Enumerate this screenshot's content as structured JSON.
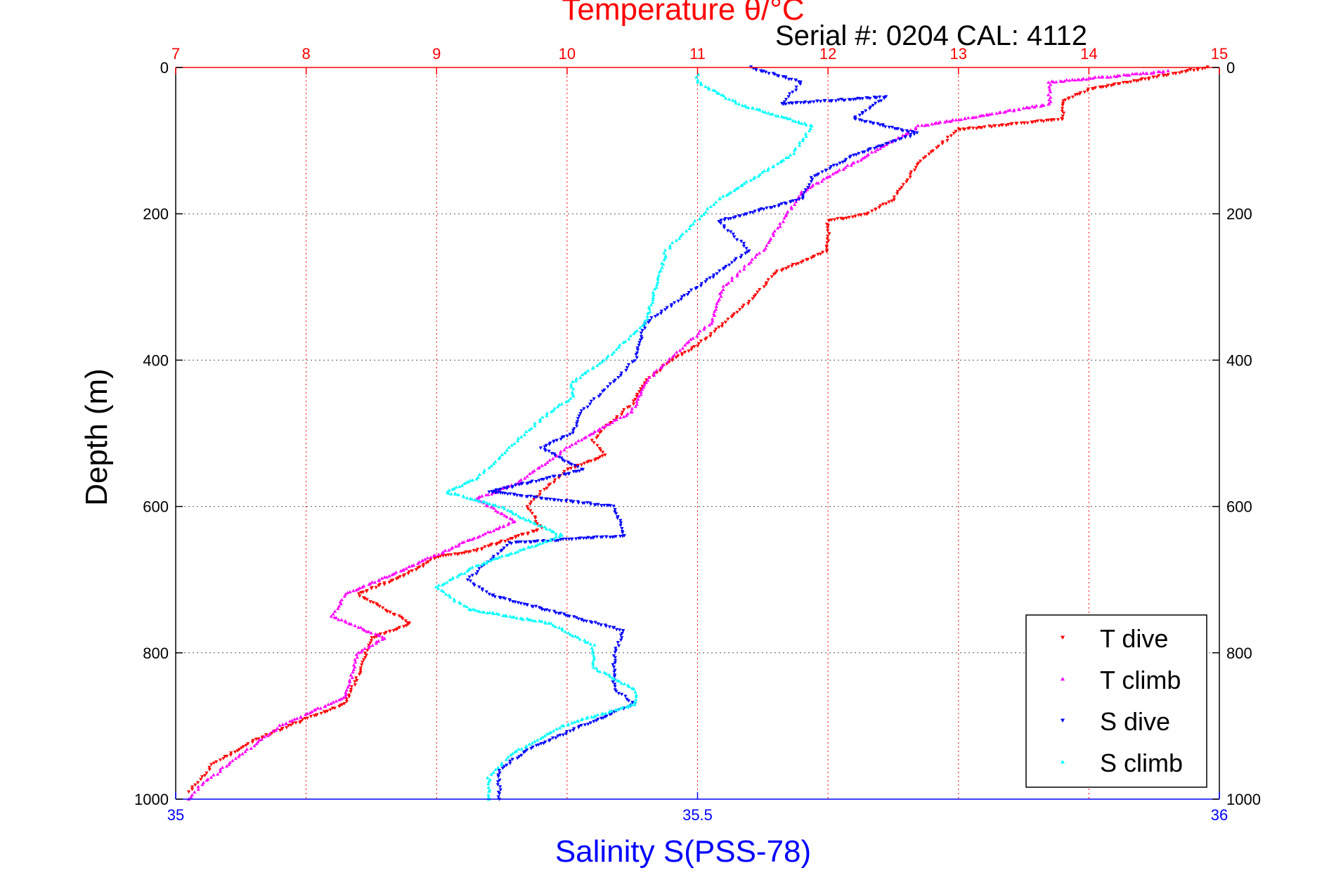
{
  "chart_data": {
    "type": "scatter",
    "title": "Temperature θ/°C",
    "subtitle": "Serial #: 0204  CAL: 4112",
    "ylabel": "Depth (m)",
    "x_top_label": "Temperature θ/°C",
    "x_bottom_label": "Salinity S(PSS-78)",
    "ylim": [
      0,
      1000
    ],
    "y_reversed": true,
    "y_ticks": [
      0,
      200,
      400,
      600,
      800,
      1000
    ],
    "temp_lim": [
      7,
      15
    ],
    "temp_ticks": [
      7,
      8,
      9,
      10,
      11,
      12,
      13,
      14,
      15
    ],
    "sal_lim": [
      35,
      36
    ],
    "sal_ticks": [
      35,
      35.5,
      36
    ],
    "sal_tick_labels": [
      "35",
      "35.5",
      "36"
    ],
    "grid": "dotted",
    "legend_position": "bottom-right",
    "colors": {
      "temp_axis": "#ff0000",
      "sal_axis": "#0000ff",
      "grid": "#555555"
    },
    "series": [
      {
        "name": "T dive",
        "axis": "temperature",
        "marker": "triangle-down",
        "color": "#ff0000",
        "points": [
          [
            14.9,
            0
          ],
          [
            14.0,
            30
          ],
          [
            13.8,
            45
          ],
          [
            13.8,
            70
          ],
          [
            13.0,
            85
          ],
          [
            12.7,
            130
          ],
          [
            12.5,
            180
          ],
          [
            12.3,
            200
          ],
          [
            12.0,
            210
          ],
          [
            12.0,
            250
          ],
          [
            11.6,
            280
          ],
          [
            11.4,
            320
          ],
          [
            11.2,
            350
          ],
          [
            11.0,
            380
          ],
          [
            10.8,
            400
          ],
          [
            10.6,
            430
          ],
          [
            10.5,
            460
          ],
          [
            10.3,
            490
          ],
          [
            10.2,
            510
          ],
          [
            10.3,
            530
          ],
          [
            10.0,
            550
          ],
          [
            9.8,
            580
          ],
          [
            9.7,
            600
          ],
          [
            9.8,
            630
          ],
          [
            9.3,
            660
          ],
          [
            9.0,
            670
          ],
          [
            8.8,
            690
          ],
          [
            8.4,
            720
          ],
          [
            8.8,
            760
          ],
          [
            8.5,
            780
          ],
          [
            8.4,
            830
          ],
          [
            8.3,
            870
          ],
          [
            8.0,
            890
          ],
          [
            7.6,
            920
          ],
          [
            7.3,
            950
          ],
          [
            7.1,
            990
          ]
        ]
      },
      {
        "name": "T climb",
        "axis": "temperature",
        "marker": "triangle-up",
        "color": "#ff00ff",
        "points": [
          [
            14.6,
            5
          ],
          [
            13.7,
            20
          ],
          [
            13.7,
            50
          ],
          [
            12.7,
            80
          ],
          [
            12.3,
            120
          ],
          [
            11.8,
            170
          ],
          [
            11.5,
            250
          ],
          [
            11.2,
            300
          ],
          [
            11.1,
            350
          ],
          [
            10.9,
            380
          ],
          [
            10.6,
            430
          ],
          [
            10.5,
            470
          ],
          [
            10.0,
            520
          ],
          [
            9.6,
            570
          ],
          [
            9.3,
            590
          ],
          [
            9.6,
            620
          ],
          [
            9.2,
            650
          ],
          [
            8.7,
            690
          ],
          [
            8.3,
            720
          ],
          [
            8.2,
            750
          ],
          [
            8.6,
            780
          ],
          [
            8.4,
            800
          ],
          [
            8.3,
            860
          ],
          [
            7.8,
            900
          ],
          [
            7.2,
            980
          ],
          [
            7.1,
            1000
          ]
        ]
      },
      {
        "name": "S dive",
        "axis": "salinity",
        "marker": "triangle-down",
        "color": "#0000ff",
        "points": [
          [
            35.55,
            0
          ],
          [
            35.6,
            20
          ],
          [
            35.58,
            50
          ],
          [
            35.68,
            40
          ],
          [
            35.65,
            70
          ],
          [
            35.71,
            90
          ],
          [
            35.65,
            120
          ],
          [
            35.61,
            150
          ],
          [
            35.6,
            180
          ],
          [
            35.52,
            210
          ],
          [
            35.55,
            250
          ],
          [
            35.5,
            300
          ],
          [
            35.45,
            350
          ],
          [
            35.44,
            400
          ],
          [
            35.39,
            470
          ],
          [
            35.38,
            500
          ],
          [
            35.35,
            520
          ],
          [
            35.39,
            550
          ],
          [
            35.3,
            580
          ],
          [
            35.42,
            600
          ],
          [
            35.43,
            640
          ],
          [
            35.32,
            650
          ],
          [
            35.28,
            700
          ],
          [
            35.3,
            720
          ],
          [
            35.43,
            770
          ],
          [
            35.42,
            800
          ],
          [
            35.42,
            850
          ],
          [
            35.44,
            870
          ],
          [
            35.39,
            900
          ],
          [
            35.34,
            930
          ],
          [
            35.31,
            960
          ],
          [
            35.31,
            1000
          ]
        ]
      },
      {
        "name": "S climb",
        "axis": "salinity",
        "marker": "triangle-up",
        "color": "#00ffff",
        "points": [
          [
            35.5,
            10
          ],
          [
            35.5,
            20
          ],
          [
            35.54,
            50
          ],
          [
            35.61,
            80
          ],
          [
            35.59,
            120
          ],
          [
            35.52,
            180
          ],
          [
            35.47,
            250
          ],
          [
            35.46,
            300
          ],
          [
            35.45,
            350
          ],
          [
            35.41,
            400
          ],
          [
            35.38,
            430
          ],
          [
            35.38,
            450
          ],
          [
            35.35,
            480
          ],
          [
            35.32,
            520
          ],
          [
            35.29,
            560
          ],
          [
            35.26,
            580
          ],
          [
            35.31,
            600
          ],
          [
            35.37,
            640
          ],
          [
            35.29,
            680
          ],
          [
            35.25,
            710
          ],
          [
            35.28,
            740
          ],
          [
            35.36,
            760
          ],
          [
            35.4,
            790
          ],
          [
            35.4,
            820
          ],
          [
            35.44,
            850
          ],
          [
            35.44,
            870
          ],
          [
            35.37,
            900
          ],
          [
            35.32,
            940
          ],
          [
            35.3,
            970
          ],
          [
            35.3,
            1000
          ]
        ]
      }
    ]
  }
}
